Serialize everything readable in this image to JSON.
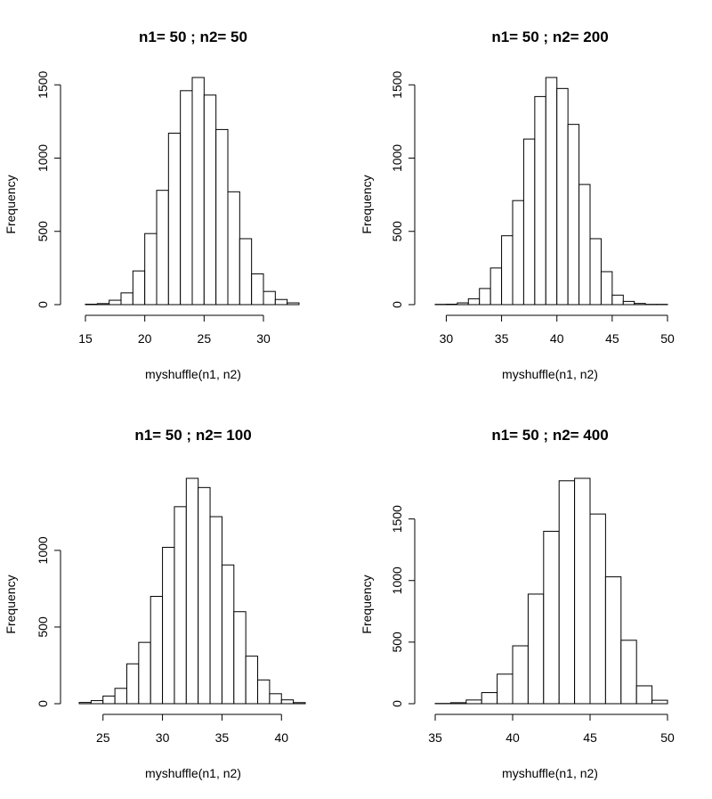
{
  "chart_data": [
    {
      "type": "histogram",
      "title": "n1= 50 ; n2= 50",
      "xlabel": "myshuffle(n1, n2)",
      "ylabel": "Frequency",
      "bin_width": 1,
      "bin_start": 15,
      "counts": [
        3,
        7,
        30,
        80,
        230,
        485,
        780,
        1170,
        1460,
        1550,
        1430,
        1195,
        770,
        450,
        210,
        90,
        35,
        12
      ],
      "xticks": [
        15,
        20,
        25,
        30
      ],
      "xlim": [
        15,
        33
      ],
      "yticks": [
        0,
        500,
        1000,
        1500
      ],
      "ylim": [
        0,
        1550
      ],
      "grid": false
    },
    {
      "type": "histogram",
      "title": "n1= 50 ; n2= 200",
      "xlabel": "myshuffle(n1, n2)",
      "ylabel": "Frequency",
      "bin_width": 1,
      "bin_start": 29,
      "counts": [
        2,
        3,
        12,
        40,
        110,
        250,
        470,
        710,
        1130,
        1420,
        1550,
        1475,
        1230,
        820,
        450,
        225,
        65,
        22,
        8,
        2,
        2
      ],
      "xticks": [
        30,
        35,
        40,
        45,
        50
      ],
      "xlim": [
        29,
        50
      ],
      "yticks": [
        0,
        500,
        1000,
        1500
      ],
      "ylim": [
        0,
        1550
      ],
      "grid": false
    },
    {
      "type": "histogram",
      "title": "n1= 50 ; n2= 100",
      "xlabel": "myshuffle(n1, n2)",
      "ylabel": "Frequency",
      "bin_width": 1,
      "bin_start": 23,
      "counts": [
        8,
        20,
        50,
        100,
        260,
        400,
        700,
        1020,
        1285,
        1470,
        1410,
        1220,
        905,
        600,
        310,
        155,
        65,
        25,
        7
      ],
      "xticks": [
        25,
        30,
        35,
        40
      ],
      "xlim": [
        23,
        42
      ],
      "yticks": [
        0,
        500,
        1000,
        1500
      ],
      "ylim": [
        0,
        1470
      ],
      "grid": false
    },
    {
      "type": "histogram",
      "title": "n1= 50 ; n2= 400",
      "xlabel": "myshuffle(n1, n2)",
      "ylabel": "Frequency",
      "bin_width": 1,
      "bin_start": 35,
      "counts": [
        2,
        8,
        30,
        90,
        240,
        470,
        890,
        1400,
        1810,
        1830,
        1540,
        1030,
        515,
        145,
        28
      ],
      "xticks": [
        35,
        40,
        45,
        50
      ],
      "xlim": [
        35,
        50
      ],
      "yticks": [
        0,
        500,
        1000,
        1500
      ],
      "ylim": [
        0,
        1830
      ],
      "grid": false
    }
  ]
}
